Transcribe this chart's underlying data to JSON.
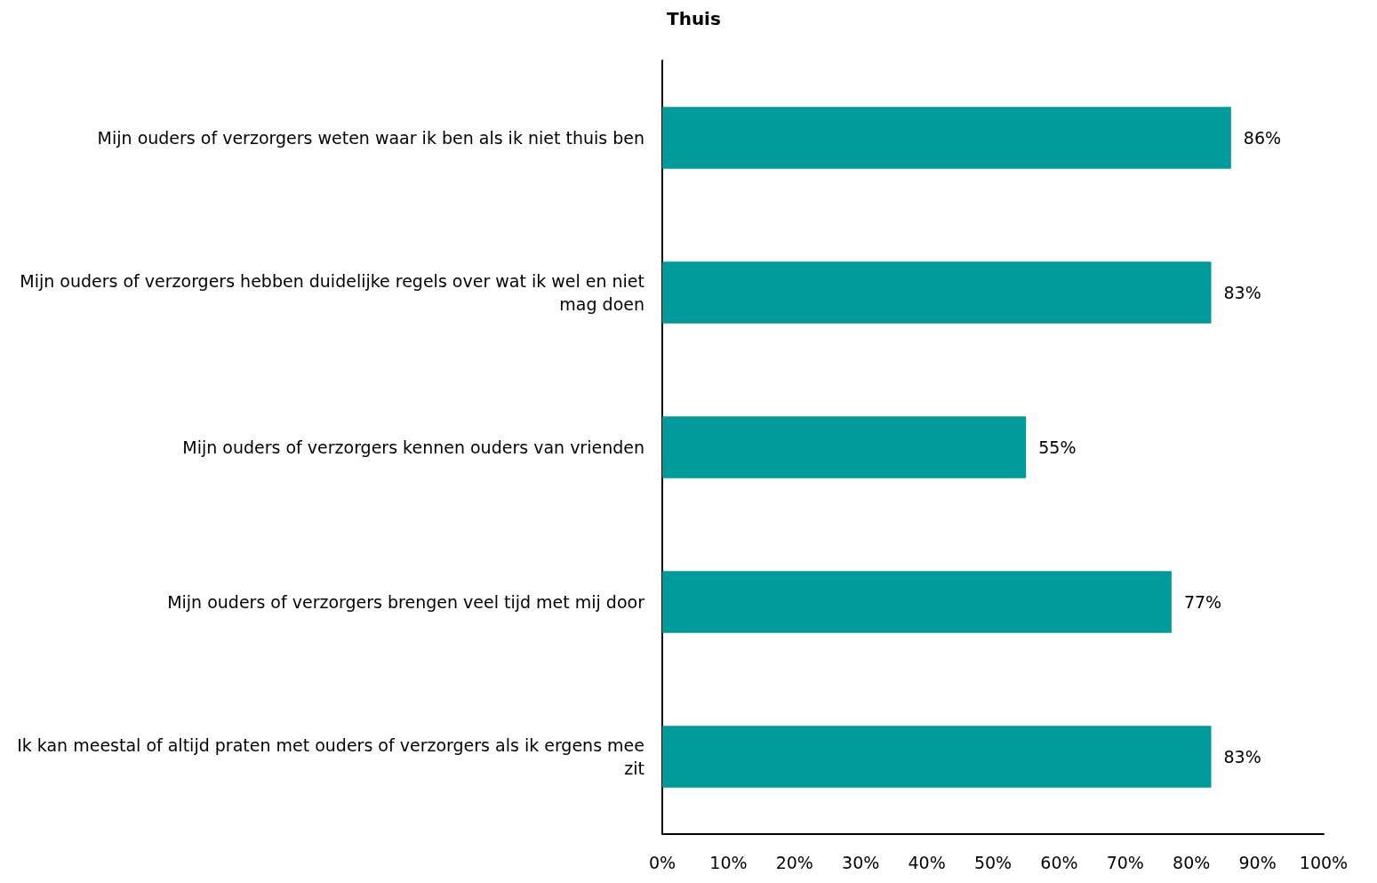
{
  "chart_data": {
    "type": "bar",
    "orientation": "horizontal",
    "title": "Thuis",
    "categories": [
      "Mijn ouders of verzorgers weten waar ik ben als ik niet thuis ben",
      "Mijn ouders of verzorgers hebben duidelijke regels over wat ik wel en niet mag doen",
      "Mijn ouders of verzorgers kennen ouders van vrienden",
      "Mijn ouders of verzorgers brengen veel tijd met mij door",
      "Ik kan meestal of altijd praten met ouders of verzorgers als ik ergens mee zit"
    ],
    "series": [
      {
        "color": "#009a9a",
        "values": [
          86,
          83,
          55,
          77,
          83
        ],
        "value_labels": [
          "86%",
          "83%",
          "55%",
          "77%",
          "83%"
        ]
      }
    ],
    "xlim": [
      0,
      100
    ],
    "xticks": [
      {
        "value": 0,
        "label": "0%"
      },
      {
        "value": 10,
        "label": "10%"
      },
      {
        "value": 20,
        "label": "20%"
      },
      {
        "value": 30,
        "label": "30%"
      },
      {
        "value": 40,
        "label": "40%"
      },
      {
        "value": 50,
        "label": "50%"
      },
      {
        "value": 60,
        "label": "60%"
      },
      {
        "value": 70,
        "label": "70%"
      },
      {
        "value": 80,
        "label": "80%"
      },
      {
        "value": 90,
        "label": "90%"
      },
      {
        "value": 100,
        "label": "100%"
      }
    ],
    "grid": false
  }
}
